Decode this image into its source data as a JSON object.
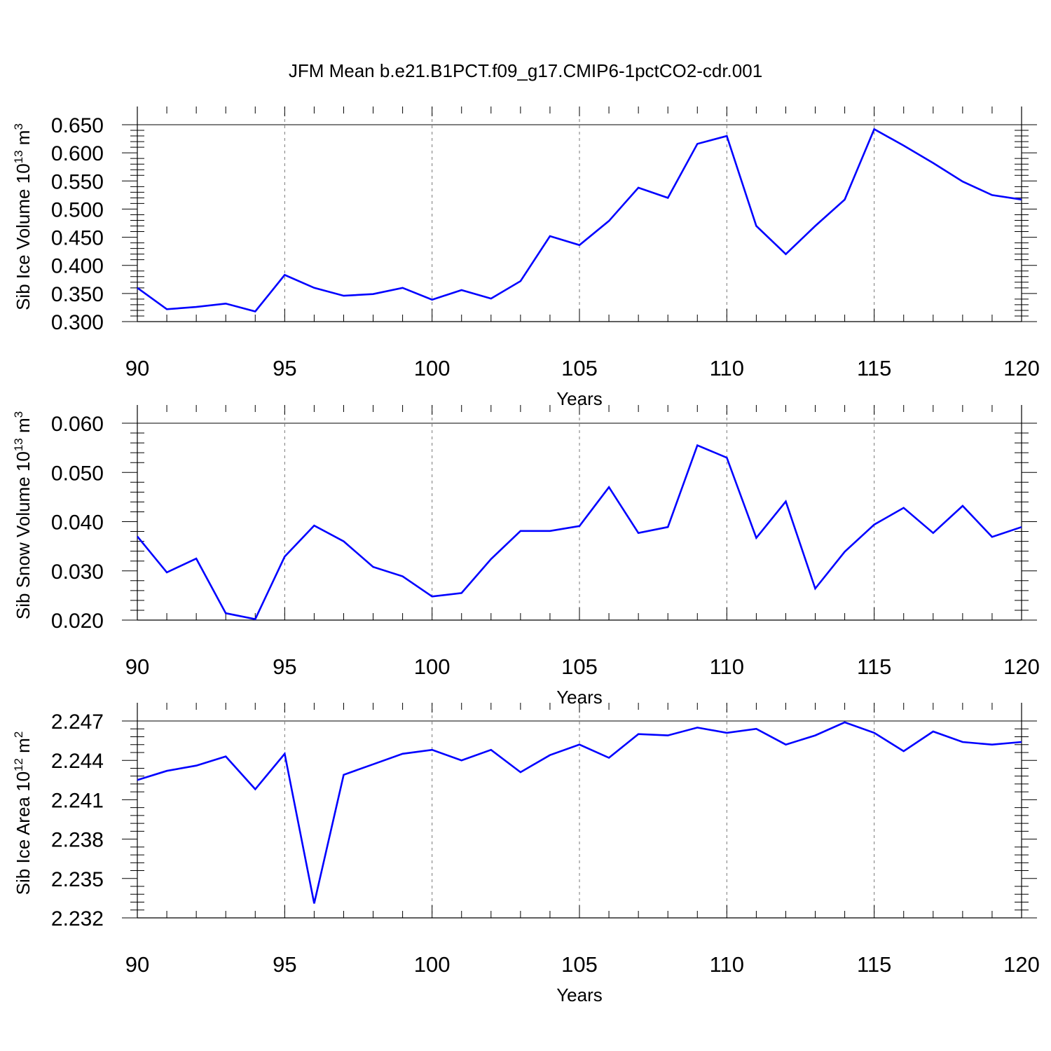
{
  "title": "JFM Mean b.e21.B1PCT.f09_g17.CMIP6-1pctCO2-cdr.001",
  "chart_data": [
    {
      "type": "line",
      "ylabel_main": "Sib Ice Volume 10",
      "ylabel_exp": "13",
      "ylabel_unit": " m",
      "ylabel_unit_exp": "3",
      "xlabel": "Years",
      "xlim": [
        90,
        120
      ],
      "ylim": [
        0.3,
        0.65
      ],
      "xticks": [
        90,
        95,
        100,
        105,
        110,
        115,
        120
      ],
      "xtick_labels": [
        "90",
        "95",
        "100",
        "105",
        "110",
        "115",
        "120"
      ],
      "yticks": [
        0.3,
        0.35,
        0.4,
        0.45,
        0.5,
        0.55,
        0.6,
        0.65
      ],
      "ytick_labels": [
        "0.300",
        "0.350",
        "0.400",
        "0.450",
        "0.500",
        "0.550",
        "0.600",
        "0.650"
      ],
      "line_color": "#0000ff",
      "x": [
        90,
        91,
        92,
        93,
        94,
        95,
        96,
        97,
        98,
        99,
        100,
        101,
        102,
        103,
        104,
        105,
        106,
        107,
        108,
        109,
        110,
        111,
        112,
        113,
        114,
        115,
        116,
        117,
        118,
        119,
        120
      ],
      "y": [
        0.36,
        0.322,
        0.326,
        0.332,
        0.318,
        0.383,
        0.36,
        0.346,
        0.349,
        0.36,
        0.339,
        0.356,
        0.341,
        0.372,
        0.452,
        0.436,
        0.479,
        0.538,
        0.52,
        0.616,
        0.63,
        0.47,
        0.42,
        0.47,
        0.517,
        0.642,
        0.613,
        0.582,
        0.549,
        0.525,
        0.517
      ]
    },
    {
      "type": "line",
      "ylabel_main": "Sib Snow Volume 10",
      "ylabel_exp": "13",
      "ylabel_unit": " m",
      "ylabel_unit_exp": "3",
      "xlabel": "Years",
      "xlim": [
        90,
        120
      ],
      "ylim": [
        0.02,
        0.06
      ],
      "xticks": [
        90,
        95,
        100,
        105,
        110,
        115,
        120
      ],
      "xtick_labels": [
        "90",
        "95",
        "100",
        "105",
        "110",
        "115",
        "120"
      ],
      "yticks": [
        0.02,
        0.03,
        0.04,
        0.05,
        0.06
      ],
      "ytick_labels": [
        "0.020",
        "0.030",
        "0.040",
        "0.050",
        "0.060"
      ],
      "line_color": "#0000ff",
      "x": [
        90,
        91,
        92,
        93,
        94,
        95,
        96,
        97,
        98,
        99,
        100,
        101,
        102,
        103,
        104,
        105,
        106,
        107,
        108,
        109,
        110,
        111,
        112,
        113,
        114,
        115,
        116,
        117,
        118,
        119,
        120
      ],
      "y": [
        0.037,
        0.0297,
        0.0325,
        0.0214,
        0.0202,
        0.0329,
        0.0392,
        0.036,
        0.0308,
        0.0289,
        0.0248,
        0.0255,
        0.0324,
        0.0381,
        0.0381,
        0.0391,
        0.047,
        0.0377,
        0.0389,
        0.0555,
        0.053,
        0.0367,
        0.0441,
        0.0264,
        0.0339,
        0.0394,
        0.0428,
        0.0377,
        0.0432,
        0.0369,
        0.0389
      ]
    },
    {
      "type": "line",
      "ylabel_main": "Sib Ice Area 10",
      "ylabel_exp": "12",
      "ylabel_unit": " m",
      "ylabel_unit_exp": "2",
      "xlabel": "Years",
      "xlim": [
        90,
        120
      ],
      "ylim": [
        2.232,
        2.247
      ],
      "xticks": [
        90,
        95,
        100,
        105,
        110,
        115,
        120
      ],
      "xtick_labels": [
        "90",
        "95",
        "100",
        "105",
        "110",
        "115",
        "120"
      ],
      "yticks": [
        2.232,
        2.235,
        2.238,
        2.241,
        2.244,
        2.247
      ],
      "ytick_labels": [
        "2.232",
        "2.235",
        "2.238",
        "2.241",
        "2.244",
        "2.247"
      ],
      "line_color": "#0000ff",
      "x": [
        90,
        91,
        92,
        93,
        94,
        95,
        96,
        97,
        98,
        99,
        100,
        101,
        102,
        103,
        104,
        105,
        106,
        107,
        108,
        109,
        110,
        111,
        112,
        113,
        114,
        115,
        116,
        117,
        118,
        119,
        120
      ],
      "y": [
        2.2425,
        2.2432,
        2.2436,
        2.2443,
        2.2418,
        2.2445,
        2.2331,
        2.2429,
        2.2437,
        2.2445,
        2.2448,
        2.244,
        2.2448,
        2.2431,
        2.2444,
        2.2452,
        2.2442,
        2.246,
        2.2459,
        2.2465,
        2.2461,
        2.2464,
        2.2452,
        2.2459,
        2.2469,
        2.2461,
        2.2447,
        2.2462,
        2.2454,
        2.2452,
        2.2454
      ]
    }
  ]
}
